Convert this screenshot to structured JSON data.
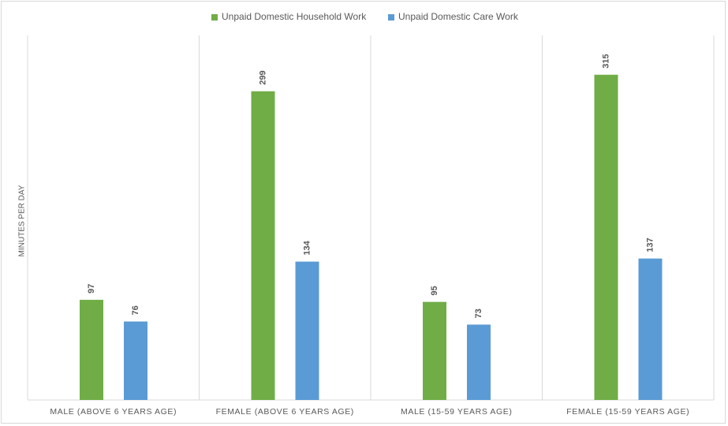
{
  "chart_data": {
    "type": "bar",
    "y_label": "MINUTES PER DAY",
    "categories": [
      "MALE (ABOVE 6 YEARS AGE)",
      "FEMALE (ABOVE 6 YEARS AGE)",
      "MALE (15-59 YEARS AGE)",
      "FEMALE (15-59 YEARS AGE)"
    ],
    "series": [
      {
        "name": "Unpaid Domestic Household Work",
        "color": "#70ad47",
        "values": [
          97,
          299,
          95,
          315
        ]
      },
      {
        "name": "Unpaid Domestic Care Work",
        "color": "#5b9bd5",
        "values": [
          76,
          134,
          73,
          137
        ]
      }
    ],
    "ylim": [
      0,
      353
    ],
    "legend": "top"
  }
}
